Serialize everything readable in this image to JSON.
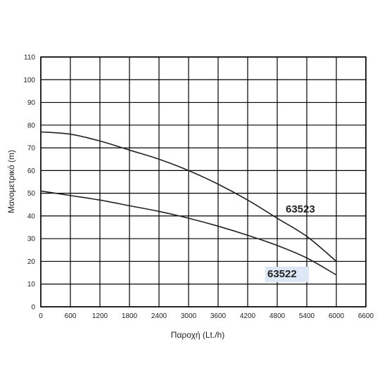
{
  "chart_data": {
    "type": "line",
    "xlabel": "Παροχή (Lt./h)",
    "ylabel": "Μανομετρικό  (m)",
    "xlim": [
      0,
      6600
    ],
    "ylim": [
      0,
      110
    ],
    "x_ticks": [
      0,
      600,
      1200,
      1800,
      2400,
      3000,
      3600,
      4200,
      4800,
      5400,
      6000,
      6600
    ],
    "y_ticks": [
      0,
      10,
      20,
      30,
      40,
      50,
      60,
      70,
      80,
      90,
      100,
      110
    ],
    "grid": true,
    "series": [
      {
        "name": "63523",
        "label_highlight": false,
        "x": [
          0,
          600,
          1200,
          1800,
          2400,
          3000,
          3600,
          4200,
          4800,
          5400,
          6000
        ],
        "y": [
          77,
          76,
          73,
          69,
          65,
          60,
          54,
          47,
          39,
          31,
          20
        ]
      },
      {
        "name": "63522",
        "label_highlight": true,
        "x": [
          0,
          600,
          1200,
          1800,
          2400,
          3000,
          3600,
          4200,
          4800,
          5400,
          6000
        ],
        "y": [
          51,
          49,
          47,
          44.5,
          42,
          39,
          35.5,
          31.5,
          27,
          21.5,
          14
        ]
      }
    ],
    "colors": {
      "line": "#222222",
      "grid": "#000000",
      "label_highlight": "#dde8f6"
    }
  }
}
